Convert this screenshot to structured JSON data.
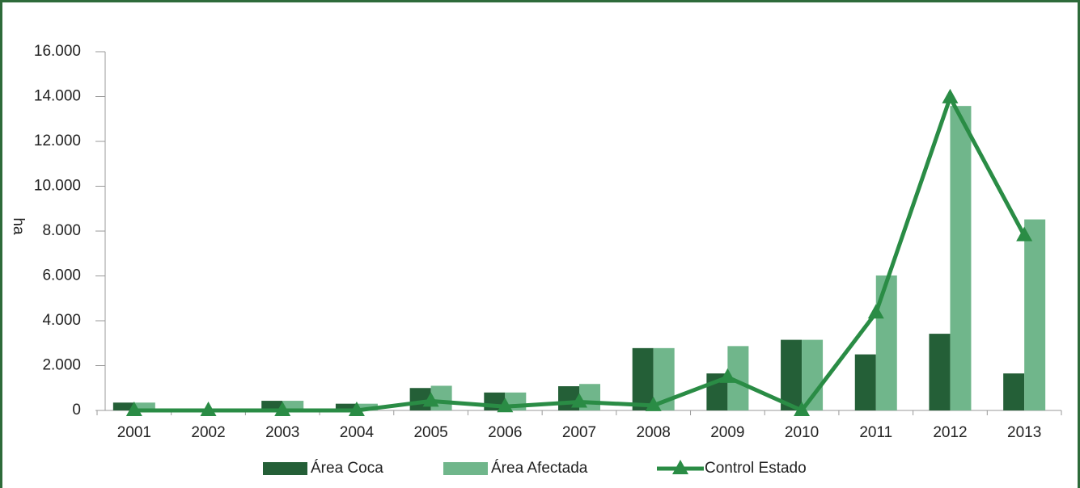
{
  "chart_data": {
    "type": "bar",
    "y_label": "ha",
    "categories": [
      "2001",
      "2002",
      "2003",
      "2004",
      "2005",
      "2006",
      "2007",
      "2008",
      "2009",
      "2010",
      "2011",
      "2012",
      "2013"
    ],
    "series": [
      {
        "name": "Área Coca",
        "color": "#245f37",
        "values": [
          350,
          0,
          430,
          300,
          1000,
          800,
          1080,
          2780,
          1650,
          3150,
          2500,
          3420,
          1650
        ]
      },
      {
        "name": "Área Afectada",
        "color": "#70b68b",
        "values": [
          350,
          0,
          430,
          300,
          1100,
          800,
          1180,
          2780,
          2870,
          3150,
          6020,
          13580,
          8520
        ]
      },
      {
        "name": "Control Estado",
        "color": "#2a8c45",
        "type": "line",
        "values": [
          0,
          0,
          0,
          0,
          420,
          170,
          380,
          220,
          1480,
          0,
          4350,
          13950,
          7800
        ]
      }
    ],
    "ylim": [
      0,
      16000
    ],
    "yticks": [
      0,
      {
        "value": 2000,
        "label": "2.000"
      },
      {
        "value": 4000,
        "label": "4.000"
      },
      {
        "value": 6000,
        "label": "6.000"
      },
      {
        "value": 8000,
        "label": "8.000"
      },
      {
        "value": 10000,
        "label": "10.000"
      },
      {
        "value": 12000,
        "label": "12.000"
      },
      {
        "value": 14000,
        "label": "14.000"
      },
      {
        "value": 16000,
        "label": "16.000"
      }
    ],
    "grid": false,
    "legend": "bottom"
  }
}
